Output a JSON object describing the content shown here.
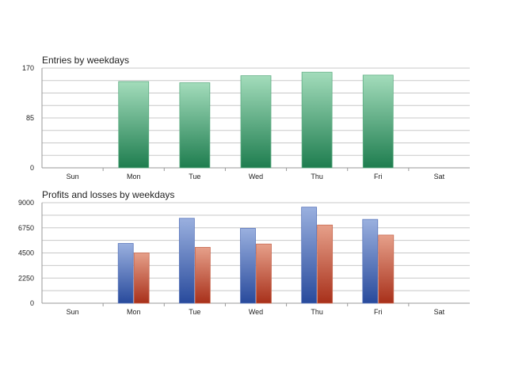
{
  "chart_data": [
    {
      "type": "bar",
      "title": "Entries by weekdays",
      "categories": [
        "Sun",
        "Mon",
        "Tue",
        "Wed",
        "Thu",
        "Fri",
        "Sat"
      ],
      "ylim": [
        0,
        170
      ],
      "yticks": [
        "0",
        "85",
        "170"
      ],
      "grid": true,
      "series": [
        {
          "values": [
            0,
            147,
            145,
            157,
            163,
            158,
            0
          ],
          "color_top": "#a3dcbb",
          "color_bottom": "#1e7d4f",
          "stroke": "#5fae84"
        }
      ]
    },
    {
      "type": "bar",
      "title": "Profits and losses by weekdays",
      "categories": [
        "Sun",
        "Mon",
        "Tue",
        "Wed",
        "Thu",
        "Fri",
        "Sat"
      ],
      "ylim": [
        0,
        9000
      ],
      "yticks": [
        "0",
        "2250",
        "4500",
        "6750",
        "9000"
      ],
      "grid": true,
      "series": [
        {
          "values": [
            0,
            5350,
            7600,
            6700,
            8600,
            7500,
            0
          ],
          "color_top": "#9ab0df",
          "color_bottom": "#284a9c",
          "stroke": "#5c78bc"
        },
        {
          "values": [
            0,
            4500,
            5000,
            5300,
            7000,
            6100,
            0
          ],
          "color_top": "#e6a08a",
          "color_bottom": "#a8301a",
          "stroke": "#c86a52"
        }
      ]
    }
  ]
}
